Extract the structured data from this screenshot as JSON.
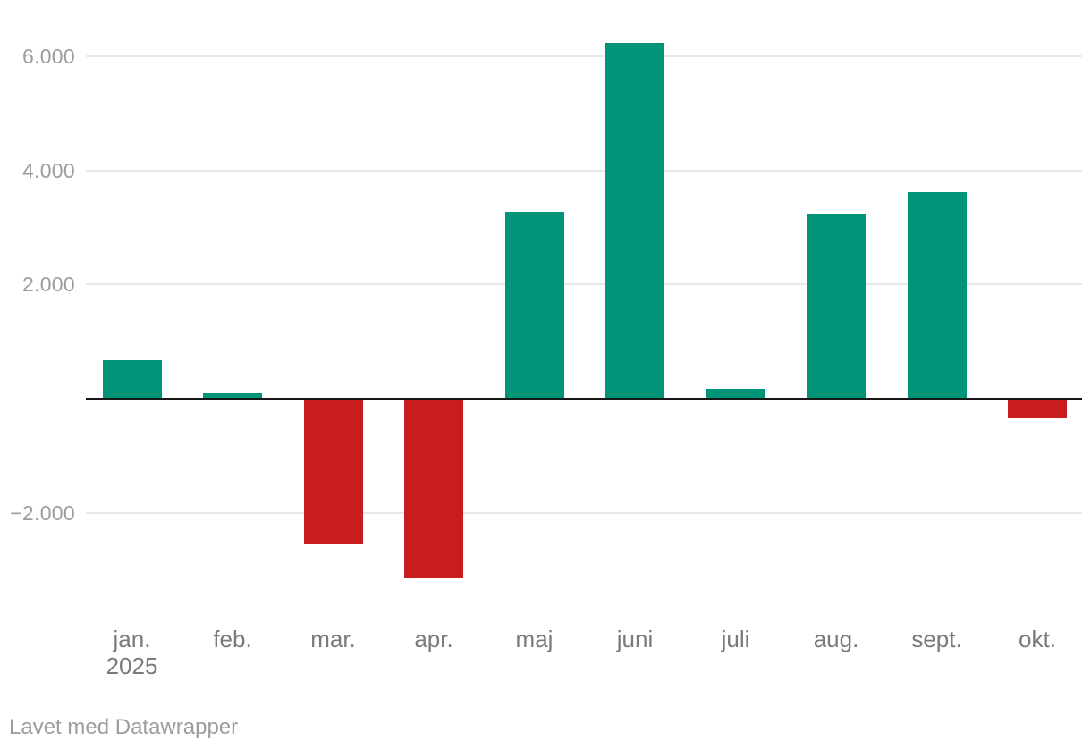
{
  "chart_data": {
    "type": "bar",
    "categories": [
      "jan.",
      "feb.",
      "mar.",
      "apr.",
      "maj",
      "juni",
      "juli",
      "aug.",
      "sept.",
      "okt."
    ],
    "values": [
      670,
      90,
      -2550,
      -3150,
      3270,
      6240,
      170,
      3250,
      3620,
      -340
    ],
    "x_axis": {
      "year_label": "2025",
      "year_label_index": 0
    },
    "y_axis": {
      "ticks": [
        {
          "value": 6000,
          "label": "6.000"
        },
        {
          "value": 4000,
          "label": "4.000"
        },
        {
          "value": 2000,
          "label": "2.000"
        },
        {
          "value": -2000,
          "label": "−2.000"
        }
      ],
      "baseline": 0,
      "ylim": [
        -3400,
        6500
      ],
      "grid": true
    },
    "colors": {
      "positive": "#009478",
      "negative": "#c71e1d"
    },
    "legend": "none",
    "title": ""
  },
  "footer": {
    "attribution": "Lavet med Datawrapper"
  }
}
